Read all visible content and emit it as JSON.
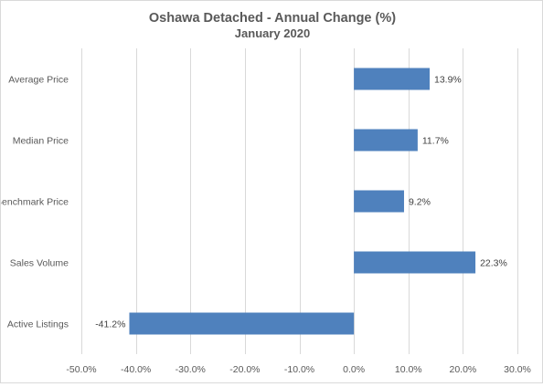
{
  "chart_data": {
    "type": "bar",
    "orientation": "horizontal",
    "title": "Oshawa Detached - Annual Change (%)",
    "subtitle": "January 2020",
    "categories": [
      "Average Price",
      "Median Price",
      "Benchmark Price",
      "Sales Volume",
      "Active Listings"
    ],
    "values": [
      13.9,
      11.7,
      9.2,
      22.3,
      -41.2
    ],
    "data_labels": [
      "13.9%",
      "11.7%",
      "9.2%",
      "22.3%",
      "-41.2%"
    ],
    "xlim": [
      -50,
      30
    ],
    "x_ticks": [
      -50,
      -40,
      -30,
      -20,
      -10,
      0,
      10,
      20,
      30
    ],
    "x_tick_labels": [
      "-50.0%",
      "-40.0%",
      "-30.0%",
      "-20.0%",
      "-10.0%",
      "0.0%",
      "10.0%",
      "20.0%",
      "30.0%"
    ],
    "xlabel": "",
    "ylabel": "",
    "grid": "vertical",
    "legend": "none",
    "bar_color": "#4f81bd"
  }
}
